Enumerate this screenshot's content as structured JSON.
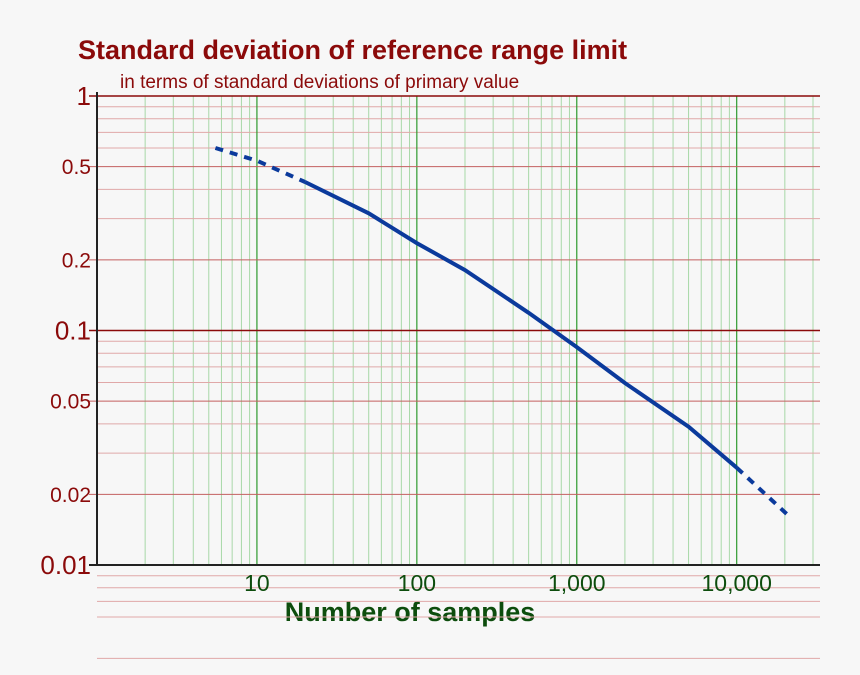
{
  "chart_data": {
    "type": "line",
    "title": "Standard deviation of reference range limit",
    "subtitle": "in terms of standard deviations of primary value",
    "x_label": "Number of samples",
    "xlog": true,
    "ylog": true,
    "xlim": [
      1,
      30000
    ],
    "ylim": [
      0.01,
      1
    ],
    "xticks": [
      10,
      100,
      {
        "value": 1000,
        "label": "1,000"
      },
      {
        "value": 10000,
        "label": "10,000"
      }
    ],
    "yticks": [
      1,
      0.5,
      0.2,
      0.1,
      0.05,
      0.02,
      0.01
    ],
    "xminorticks": [
      2,
      3,
      4,
      5,
      6,
      7,
      8,
      9,
      20,
      30,
      40,
      50,
      60,
      70,
      80,
      90,
      200,
      300,
      400,
      500,
      600,
      700,
      800,
      900,
      2000,
      3000,
      4000,
      5000,
      6000,
      7000,
      8000,
      9000,
      20000,
      30000
    ],
    "yminorticks": [
      0.9,
      0.8,
      0.7,
      0.6,
      0.4,
      0.3,
      0.09,
      0.08,
      0.07,
      0.06,
      0.04,
      0.03,
      0.009,
      0.008,
      0.007,
      0.006,
      0.004,
      0.003
    ],
    "x": [
      5.5,
      10,
      20,
      50,
      100,
      200,
      500,
      1000,
      2000,
      5000,
      10000,
      22000
    ],
    "series": [
      {
        "color": "#0b3a9c",
        "dashed": false,
        "values": [
          null,
          null,
          0.43,
          0.316,
          0.236,
          0.181,
          0.119,
          0.085,
          0.0597,
          0.0389,
          0.026,
          null
        ]
      },
      {
        "color": "#0b3a9c",
        "dashed": true,
        "values": [
          0.6,
          0.53,
          0.43,
          null,
          null,
          null,
          null,
          null,
          null,
          null,
          0.026,
          0.0158
        ]
      }
    ]
  }
}
